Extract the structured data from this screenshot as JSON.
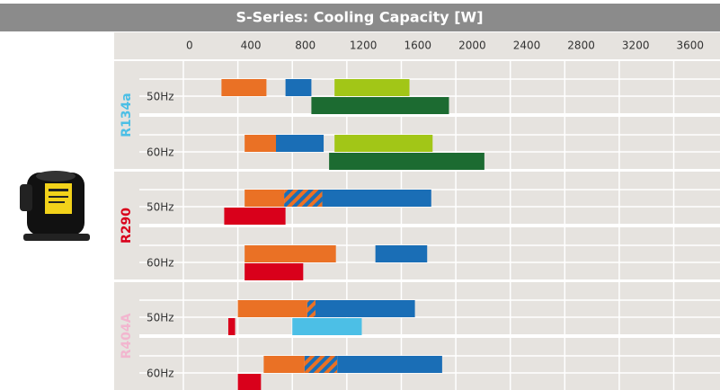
{
  "chart_data": {
    "type": "range-bar",
    "title": "S-Series: Cooling Capacity [W]",
    "xlim": [
      0,
      3900
    ],
    "xticks": [
      0,
      400,
      800,
      1200,
      1600,
      2000,
      2400,
      2800,
      3200,
      3600
    ],
    "grid": true,
    "groups": [
      {
        "name": "R134a",
        "color": "#4cbfe6",
        "rows": [
          {
            "label": "50Hz",
            "lanes": [
              [
                {
                  "range": [
                    260,
                    590
                  ],
                  "color": "#ea7125"
                },
                {
                  "range": [
                    730,
                    920
                  ],
                  "color": "#1a6eb6"
                },
                {
                  "range": [
                    1090,
                    1640
                  ],
                  "color": "#a2c617"
                }
              ],
              [
                {
                  "range": [
                    920,
                    1930
                  ],
                  "color": "#1c6b31"
                }
              ]
            ]
          },
          {
            "label": "60Hz",
            "lanes": [
              [
                {
                  "range": [
                    430,
                    660
                  ],
                  "color": "#ea7125"
                },
                {
                  "range": [
                    660,
                    1010
                  ],
                  "color": "#1a6eb6"
                },
                {
                  "range": [
                    1090,
                    1810
                  ],
                  "color": "#a2c617"
                }
              ],
              [
                {
                  "range": [
                    1050,
                    2190
                  ],
                  "color": "#1c6b31"
                }
              ]
            ]
          }
        ]
      },
      {
        "name": "R290",
        "color": "#d9001b",
        "rows": [
          {
            "label": "50Hz",
            "lanes": [
              [
                {
                  "range": [
                    430,
                    720
                  ],
                  "color": "#ea7125"
                },
                {
                  "range": [
                    720,
                    1000
                  ],
                  "colors": [
                    "#ea7125",
                    "#1a6eb6"
                  ]
                },
                {
                  "range": [
                    1000,
                    1800
                  ],
                  "color": "#1a6eb6"
                }
              ],
              [
                {
                  "range": [
                    280,
                    730
                  ],
                  "color": "#d9001b"
                }
              ]
            ]
          },
          {
            "label": "60Hz",
            "lanes": [
              [
                {
                  "range": [
                    430,
                    1100
                  ],
                  "color": "#ea7125"
                },
                {
                  "range": [
                    1390,
                    1770
                  ],
                  "color": "#1a6eb6"
                }
              ],
              [
                {
                  "range": [
                    430,
                    860
                  ],
                  "color": "#d9001b"
                }
              ]
            ]
          }
        ]
      },
      {
        "name": "R404A",
        "color": "#f2b6cf",
        "rows": [
          {
            "label": "50Hz",
            "lanes": [
              [
                {
                  "range": [
                    380,
                    890
                  ],
                  "color": "#ea7125"
                },
                {
                  "range": [
                    890,
                    950
                  ],
                  "colors": [
                    "#ea7125",
                    "#1a6eb6"
                  ]
                },
                {
                  "range": [
                    950,
                    1680
                  ],
                  "color": "#1a6eb6"
                }
              ],
              [
                {
                  "range": [
                    310,
                    360
                  ],
                  "color": "#d9001b"
                },
                {
                  "range": [
                    780,
                    1290
                  ],
                  "color": "#4cbfe6"
                }
              ]
            ]
          },
          {
            "label": "60Hz",
            "lanes": [
              [
                {
                  "range": [
                    570,
                    870
                  ],
                  "color": "#ea7125"
                },
                {
                  "range": [
                    870,
                    1110
                  ],
                  "colors": [
                    "#ea7125",
                    "#1a6eb6"
                  ]
                },
                {
                  "range": [
                    1110,
                    1880
                  ],
                  "color": "#1a6eb6"
                }
              ],
              [
                {
                  "range": [
                    380,
                    550
                  ],
                  "color": "#d9001b"
                }
              ]
            ]
          }
        ]
      }
    ]
  }
}
